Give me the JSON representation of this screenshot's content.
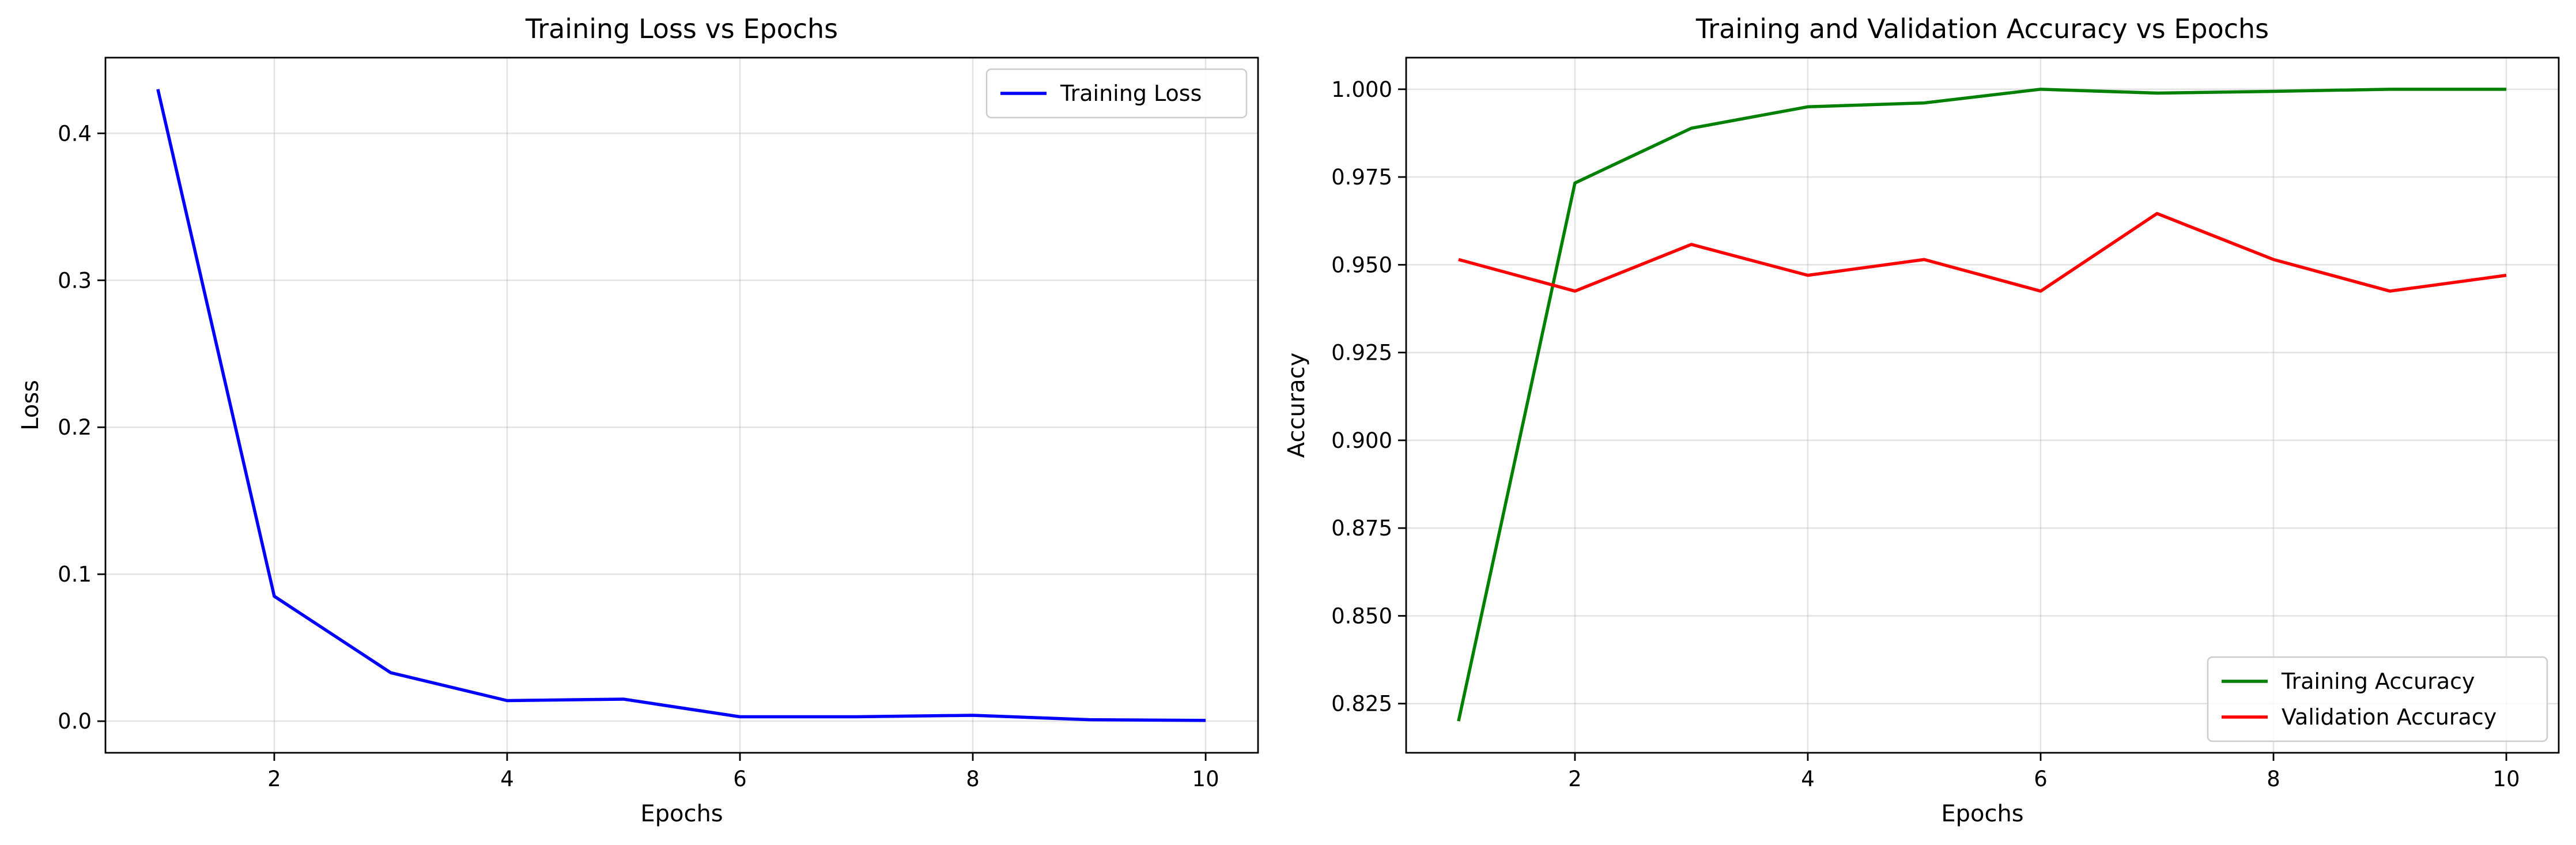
{
  "chart_data": [
    {
      "type": "line",
      "title": "Training Loss vs Epochs",
      "xlabel": "Epochs",
      "ylabel": "Loss",
      "xlim": [
        0.55,
        10.45
      ],
      "ylim": [
        -0.0215,
        0.4515
      ],
      "xticks": [
        2,
        4,
        6,
        8,
        10
      ],
      "xtick_labels": [
        "2",
        "4",
        "6",
        "8",
        "10"
      ],
      "yticks": [
        0.0,
        0.1,
        0.2,
        0.3,
        0.4
      ],
      "ytick_labels": [
        "0.0",
        "0.1",
        "0.2",
        "0.3",
        "0.4"
      ],
      "grid": true,
      "legend_position": "upper-right",
      "x": [
        1,
        2,
        3,
        4,
        5,
        6,
        7,
        8,
        9,
        10
      ],
      "series": [
        {
          "name": "Training Loss",
          "color": "#0000ff",
          "values": [
            0.43,
            0.085,
            0.033,
            0.014,
            0.015,
            0.003,
            0.003,
            0.004,
            0.001,
            0.0005
          ]
        }
      ]
    },
    {
      "type": "line",
      "title": "Training and Validation Accuracy vs Epochs",
      "xlabel": "Epochs",
      "ylabel": "Accuracy",
      "xlim": [
        0.55,
        10.45
      ],
      "ylim": [
        0.811,
        1.009
      ],
      "xticks": [
        2,
        4,
        6,
        8,
        10
      ],
      "xtick_labels": [
        "2",
        "4",
        "6",
        "8",
        "10"
      ],
      "yticks": [
        0.825,
        0.85,
        0.875,
        0.9,
        0.925,
        0.95,
        0.975,
        1.0
      ],
      "ytick_labels": [
        "0.825",
        "0.850",
        "0.875",
        "0.900",
        "0.925",
        "0.950",
        "0.975",
        "1.000"
      ],
      "grid": true,
      "legend_position": "lower-right",
      "x": [
        1,
        2,
        3,
        4,
        5,
        6,
        7,
        8,
        9,
        10
      ],
      "series": [
        {
          "name": "Training Accuracy",
          "color": "#008000",
          "values": [
            0.82,
            0.9733,
            0.9889,
            0.995,
            0.9961,
            1.0,
            0.9989,
            0.9994,
            1.0,
            1.0
          ]
        },
        {
          "name": "Validation Accuracy",
          "color": "#ff0000",
          "values": [
            0.9515,
            0.9425,
            0.9558,
            0.947,
            0.9515,
            0.9425,
            0.9646,
            0.9515,
            0.9425,
            0.947
          ]
        }
      ]
    }
  ]
}
